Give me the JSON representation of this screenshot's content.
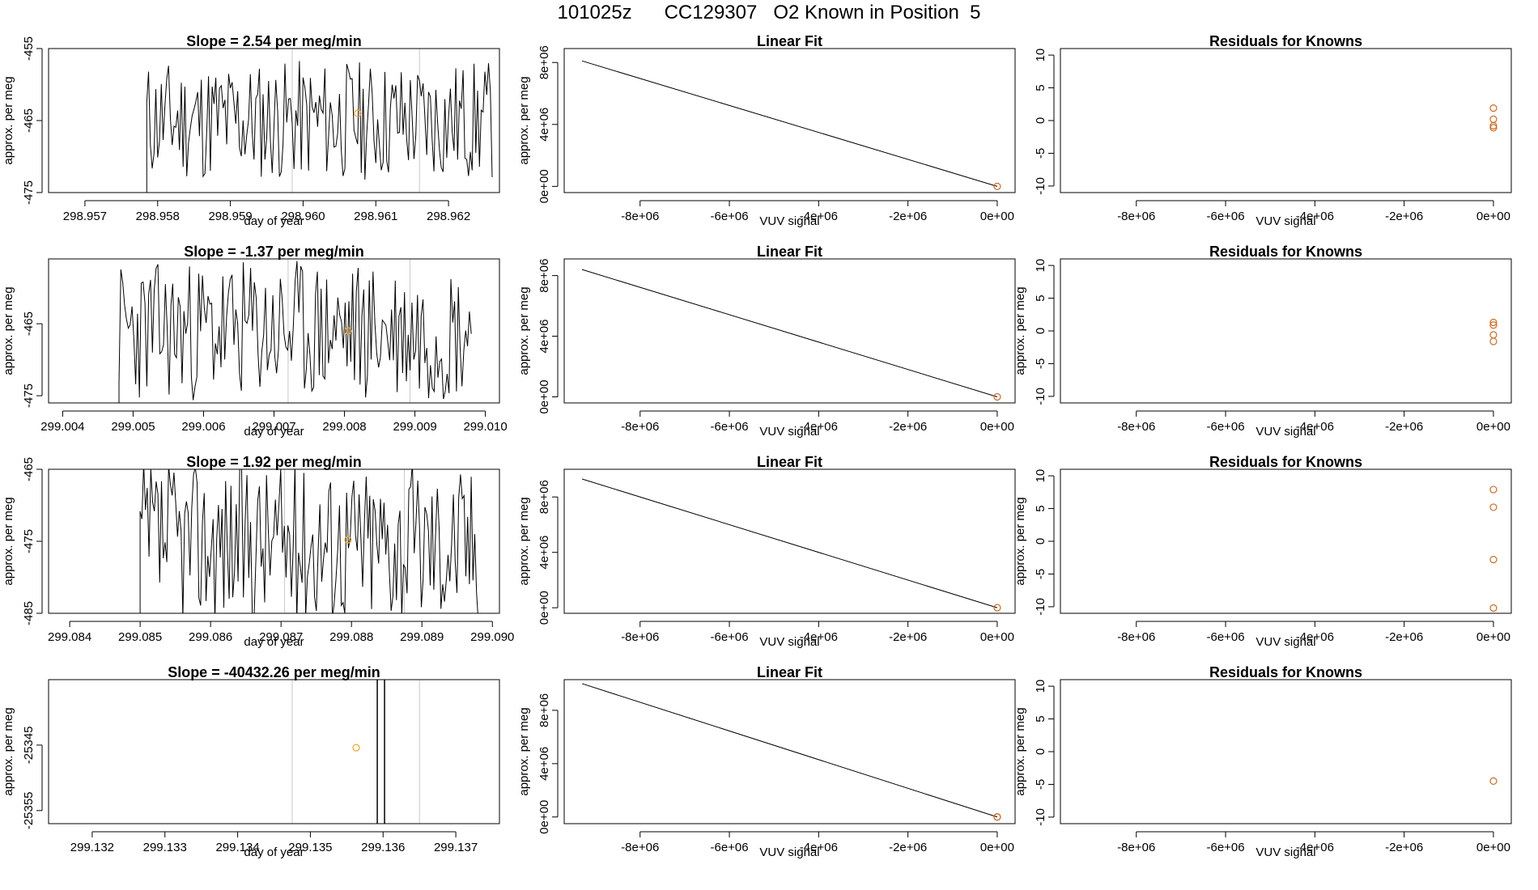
{
  "page_title": "101025z      CC129307   O2 Known in Position  5",
  "chart_data": [
    {
      "type": "line",
      "role": "timeseries",
      "row": 0,
      "title": "Slope =  2.54  per meg/min",
      "xlabel": "day of year",
      "ylabel": "approx. per meg",
      "xlim": [
        298.9565,
        298.9627
      ],
      "ylim": [
        -475,
        -455
      ],
      "xticks": [
        298.957,
        298.958,
        298.959,
        298.96,
        298.961,
        298.962
      ],
      "xtick_labels": [
        "298.957",
        "298.958",
        "298.959",
        "298.960",
        "298.961",
        "298.962"
      ],
      "yticks": [
        -475,
        -465,
        -455
      ],
      "ytick_labels": [
        "-475",
        "-465",
        "-455"
      ],
      "vlines": [
        298.95985,
        298.9616
      ],
      "marker": {
        "x": 298.96075,
        "y": -464.0
      },
      "series_start": 298.95785,
      "series_end": 298.9626,
      "series_base": -465,
      "series_amp": 6,
      "seed": 11
    },
    {
      "type": "line",
      "role": "linear_fit",
      "row": 0,
      "title": "Linear Fit",
      "xlabel": "VUV signal",
      "ylabel": "approx. per meg",
      "xlim": [
        -9700000,
        400000
      ],
      "ylim": [
        -400000,
        8900000
      ],
      "xticks": [
        -8000000,
        -6000000,
        -4000000,
        -2000000,
        0
      ],
      "xtick_labels": [
        "-8e+06",
        "-6e+06",
        "-4e+06",
        "-2e+06",
        "0e+00"
      ],
      "yticks": [
        0,
        4000000,
        8000000
      ],
      "ytick_labels": [
        "0e+00",
        "4e+06",
        "8e+06"
      ],
      "line": {
        "x": [
          -9300000,
          0
        ],
        "y": [
          8100000,
          0
        ]
      },
      "points": {
        "x": [
          0
        ],
        "y": [
          0
        ]
      }
    },
    {
      "type": "scatter",
      "role": "residuals",
      "row": 0,
      "title": "Residuals for Knowns",
      "xlabel": "VUV signal",
      "ylabel": "",
      "xlim": [
        -9700000,
        400000
      ],
      "ylim": [
        -11,
        11
      ],
      "xticks": [
        -8000000,
        -6000000,
        -4000000,
        -2000000,
        0
      ],
      "xtick_labels": [
        "-8e+06",
        "-6e+06",
        "-4e+06",
        "-2e+06",
        "0e+00"
      ],
      "yticks": [
        -10,
        -5,
        0,
        5,
        10
      ],
      "ytick_labels": [
        "-10",
        "-5",
        "0",
        "5",
        "10"
      ],
      "points": {
        "x": [
          0,
          0,
          0,
          0
        ],
        "y": [
          1.9,
          0.2,
          -0.8,
          -1.1
        ]
      }
    },
    {
      "type": "line",
      "role": "timeseries",
      "row": 1,
      "title": "Slope =  -1.37  per meg/min",
      "xlabel": "day of year",
      "ylabel": "approx. per meg",
      "xlim": [
        299.0038,
        299.0102
      ],
      "ylim": [
        -476,
        -456
      ],
      "xticks": [
        299.004,
        299.005,
        299.006,
        299.007,
        299.008,
        299.009,
        299.01
      ],
      "xtick_labels": [
        "299.004",
        "299.005",
        "299.006",
        "299.007",
        "299.008",
        "299.009",
        "299.010"
      ],
      "yticks": [
        -475,
        -465
      ],
      "ytick_labels": [
        "-475",
        "-465"
      ],
      "vlines": [
        299.0072,
        299.00893
      ],
      "marker": {
        "x": 299.00805,
        "y": -466.0
      },
      "series_start": 299.0048,
      "series_end": 299.0098,
      "series_base": -466,
      "series_amp": 7,
      "seed": 23
    },
    {
      "type": "line",
      "role": "linear_fit",
      "row": 1,
      "title": "Linear Fit",
      "xlabel": "VUV signal",
      "ylabel": "approx. per meg",
      "xlim": [
        -9700000,
        400000
      ],
      "ylim": [
        -400000,
        9100000
      ],
      "xticks": [
        -8000000,
        -6000000,
        -4000000,
        -2000000,
        0
      ],
      "xtick_labels": [
        "-8e+06",
        "-6e+06",
        "-4e+06",
        "-2e+06",
        "0e+00"
      ],
      "yticks": [
        0,
        4000000,
        8000000
      ],
      "ytick_labels": [
        "0e+00",
        "4e+06",
        "8e+06"
      ],
      "line": {
        "x": [
          -9300000,
          0
        ],
        "y": [
          8400000,
          0
        ]
      },
      "points": {
        "x": [
          0
        ],
        "y": [
          0
        ]
      }
    },
    {
      "type": "scatter",
      "role": "residuals",
      "row": 1,
      "title": "Residuals for Knowns",
      "xlabel": "VUV signal",
      "ylabel": "approx. per meg",
      "xlim": [
        -9700000,
        400000
      ],
      "ylim": [
        -11,
        11
      ],
      "xticks": [
        -8000000,
        -6000000,
        -4000000,
        -2000000,
        0
      ],
      "xtick_labels": [
        "-8e+06",
        "-6e+06",
        "-4e+06",
        "-2e+06",
        "0e+00"
      ],
      "yticks": [
        -10,
        -5,
        0,
        5,
        10
      ],
      "ytick_labels": [
        "-10",
        "-5",
        "0",
        "5",
        "10"
      ],
      "points": {
        "x": [
          0,
          0,
          0,
          0
        ],
        "y": [
          1.3,
          0.9,
          -0.6,
          -1.6
        ]
      }
    },
    {
      "type": "line",
      "role": "timeseries",
      "row": 2,
      "title": "Slope =  1.92  per meg/min",
      "xlabel": "day of year",
      "ylabel": "approx. per meg",
      "xlim": [
        299.0837,
        299.0901
      ],
      "ylim": [
        -485,
        -465
      ],
      "xticks": [
        299.084,
        299.085,
        299.086,
        299.087,
        299.088,
        299.089,
        299.09
      ],
      "xtick_labels": [
        "299.084",
        "299.085",
        "299.086",
        "299.087",
        "299.088",
        "299.089",
        "299.090"
      ],
      "yticks": [
        -485,
        -475,
        -465
      ],
      "ytick_labels": [
        "-485",
        "-475",
        "-465"
      ],
      "vlines": [
        299.08705,
        299.08875
      ],
      "marker": {
        "x": 299.08795,
        "y": -474.8
      },
      "series_start": 299.085,
      "series_end": 299.0898,
      "series_base": -475,
      "series_amp": 8,
      "seed": 37
    },
    {
      "type": "line",
      "role": "linear_fit",
      "row": 2,
      "title": "Linear Fit",
      "xlabel": "VUV signal",
      "ylabel": "approx. per meg",
      "xlim": [
        -9700000,
        400000
      ],
      "ylim": [
        -400000,
        10000000
      ],
      "xticks": [
        -8000000,
        -6000000,
        -4000000,
        -2000000,
        0
      ],
      "xtick_labels": [
        "-8e+06",
        "-6e+06",
        "-4e+06",
        "-2e+06",
        "0e+00"
      ],
      "yticks": [
        0,
        4000000,
        8000000
      ],
      "ytick_labels": [
        "0e+00",
        "4e+06",
        "8e+06"
      ],
      "line": {
        "x": [
          -9300000,
          0
        ],
        "y": [
          9300000,
          0
        ]
      },
      "points": {
        "x": [
          0
        ],
        "y": [
          0
        ]
      }
    },
    {
      "type": "scatter",
      "role": "residuals",
      "row": 2,
      "title": "Residuals for Knowns",
      "xlabel": "VUV signal",
      "ylabel": "approx. per meg",
      "xlim": [
        -9700000,
        400000
      ],
      "ylim": [
        -11,
        11
      ],
      "xticks": [
        -8000000,
        -6000000,
        -4000000,
        -2000000,
        0
      ],
      "xtick_labels": [
        "-8e+06",
        "-6e+06",
        "-4e+06",
        "-2e+06",
        "0e+00"
      ],
      "yticks": [
        -10,
        -5,
        0,
        5,
        10
      ],
      "ytick_labels": [
        "-10",
        "-5",
        "0",
        "5",
        "10"
      ],
      "points": {
        "x": [
          0,
          0,
          0,
          0
        ],
        "y": [
          7.9,
          5.2,
          -2.8,
          -10.2
        ]
      }
    },
    {
      "type": "line",
      "role": "timeseries",
      "row": 3,
      "title": "Slope =  -40432.26  per meg/min",
      "xlabel": "day of year",
      "ylabel": "approx. per meg",
      "xlim": [
        299.1314,
        299.1376
      ],
      "ylim": [
        -25357,
        -25335
      ],
      "xticks": [
        299.132,
        299.133,
        299.134,
        299.135,
        299.136,
        299.137
      ],
      "xtick_labels": [
        "299.132",
        "299.133",
        "299.134",
        "299.135",
        "299.136",
        "299.137"
      ],
      "yticks": [
        -25355,
        -25345
      ],
      "ytick_labels": [
        "-25355",
        "-25345"
      ],
      "vlines": [
        299.13475,
        299.1365
      ],
      "dark_vlines": [
        299.13592,
        299.13602
      ],
      "marker": {
        "x": 299.13563,
        "y": -25345.4
      }
    },
    {
      "type": "line",
      "role": "linear_fit",
      "row": 3,
      "title": "Linear Fit",
      "xlabel": "VUV signal",
      "ylabel": "approx. per meg",
      "xlim": [
        -9700000,
        400000
      ],
      "ylim": [
        -500000,
        10300000
      ],
      "xticks": [
        -8000000,
        -6000000,
        -4000000,
        -2000000,
        0
      ],
      "xtick_labels": [
        "-8e+06",
        "-6e+06",
        "-4e+06",
        "-2e+06",
        "0e+00"
      ],
      "yticks": [
        0,
        4000000,
        8000000
      ],
      "ytick_labels": [
        "0e+00",
        "4e+06",
        "8e+06"
      ],
      "line": {
        "x": [
          -9300000,
          0
        ],
        "y": [
          10000000,
          0
        ]
      },
      "points": {
        "x": [
          0,
          0
        ],
        "y": [
          0,
          0
        ]
      }
    },
    {
      "type": "scatter",
      "role": "residuals",
      "row": 3,
      "title": "Residuals for Knowns",
      "xlabel": "VUV signal",
      "ylabel": "approx. per meg",
      "xlim": [
        -9700000,
        400000
      ],
      "ylim": [
        -11,
        11
      ],
      "xticks": [
        -8000000,
        -6000000,
        -4000000,
        -2000000,
        0
      ],
      "xtick_labels": [
        "-8e+06",
        "-6e+06",
        "-4e+06",
        "-2e+06",
        "0e+00"
      ],
      "yticks": [
        -10,
        -5,
        0,
        5,
        10
      ],
      "ytick_labels": [
        "-10",
        "-5",
        "0",
        "5",
        "10"
      ],
      "points": {
        "x": [
          0
        ],
        "y": [
          -4.5
        ]
      }
    }
  ],
  "colors": {
    "line": "#000000",
    "vline": "#c8c8c8",
    "marker": "#f5a623",
    "residual_point": "#d2691e",
    "fit_point": "#d2691e"
  }
}
